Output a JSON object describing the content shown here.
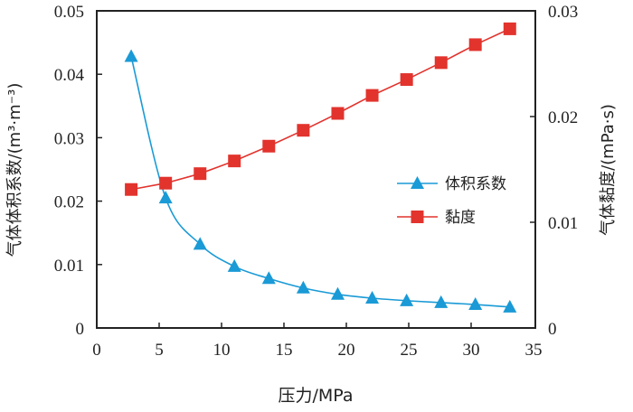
{
  "chart_data": {
    "type": "line",
    "title": "",
    "xlabel": "压力/MPa",
    "ylabel_left": "气体体积系数/(m³·m⁻³)",
    "ylabel_right": "气体黏度/(mPa·s)",
    "xlim": [
      0,
      35
    ],
    "ylim_left": [
      0,
      0.05
    ],
    "ylim_right": [
      0,
      0.03
    ],
    "x_ticks": [
      "0",
      "5",
      "10",
      "15",
      "20",
      "25",
      "30",
      "35"
    ],
    "y_left_ticks": [
      "0",
      "0.01",
      "0.02",
      "0.03",
      "0.04",
      "0.05"
    ],
    "y_right_ticks": [
      "0",
      "0.01",
      "0.02",
      "0.03"
    ],
    "grid": false,
    "legend_position": "center-right",
    "x": [
      2.76,
      5.52,
      8.28,
      11.03,
      13.79,
      16.55,
      19.31,
      22.07,
      24.83,
      27.59,
      30.34,
      33.1
    ],
    "series": [
      {
        "name": "体积系数",
        "axis": "left",
        "color": "#1a9ad6",
        "marker": "triangle",
        "smooth": true,
        "values": [
          0.0428,
          0.0205,
          0.0132,
          0.0097,
          0.0078,
          0.0063,
          0.0053,
          0.0047,
          0.0043,
          0.004,
          0.0037,
          0.0033
        ]
      },
      {
        "name": "黏度",
        "axis": "right",
        "color": "#e2332d",
        "marker": "square",
        "smooth": false,
        "values": [
          0.0131,
          0.0137,
          0.0146,
          0.0158,
          0.0172,
          0.0187,
          0.0203,
          0.022,
          0.0235,
          0.0251,
          0.0268,
          0.0283
        ]
      }
    ]
  }
}
